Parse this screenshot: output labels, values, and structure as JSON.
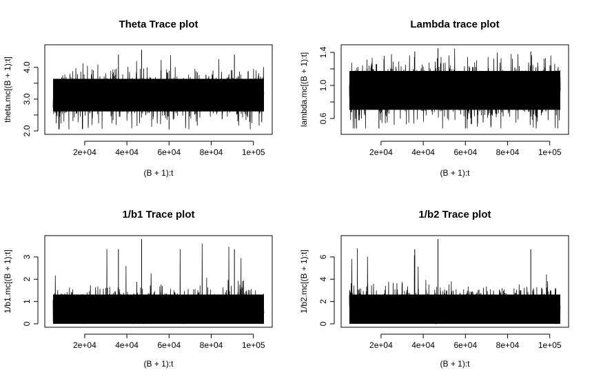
{
  "chart_data": [
    {
      "type": "line",
      "title": "Theta Trace plot",
      "xlabel": "(B + 1):t",
      "ylabel": "theta.mc[(B + 1):t]",
      "xlim": [
        5000,
        105000
      ],
      "ylim": [
        2.0,
        4.6
      ],
      "xticks": [
        20000,
        40000,
        60000,
        80000,
        100000
      ],
      "xtick_labels": [
        "2e+04",
        "4e+04",
        "6e+04",
        "8e+04",
        "1e+05"
      ],
      "yticks": [
        2.0,
        2.5,
        3.0,
        3.5,
        4.0
      ],
      "ytick_labels": [
        "2.0",
        "",
        "3.0",
        "",
        "4.0"
      ],
      "series": [
        {
          "style": "dense-trace",
          "center": 3.1,
          "band": [
            2.5,
            3.8
          ],
          "extremes": [
            2.05,
            4.55
          ]
        }
      ]
    },
    {
      "type": "line",
      "title": "Lambda trace plot",
      "xlabel": "(B + 1):t",
      "ylabel": "lambda.mc[(B + 1):t]",
      "xlim": [
        5000,
        105000
      ],
      "ylim": [
        0.45,
        1.45
      ],
      "xticks": [
        20000,
        40000,
        60000,
        80000,
        100000
      ],
      "xtick_labels": [
        "2e+04",
        "4e+04",
        "6e+04",
        "8e+04",
        "1e+05"
      ],
      "yticks": [
        0.6,
        0.8,
        1.0,
        1.2,
        1.4
      ],
      "ytick_labels": [
        "0.6",
        "",
        "1.0",
        "",
        "1.4"
      ],
      "series": [
        {
          "style": "dense-trace",
          "center": 0.93,
          "band": [
            0.65,
            1.25
          ],
          "extremes": [
            0.48,
            1.45
          ]
        }
      ]
    },
    {
      "type": "line",
      "title": "1/b1 Trace plot",
      "xlabel": "(B + 1):t",
      "ylabel": "1/b1.mc[(B + 1):t]",
      "xlim": [
        5000,
        105000
      ],
      "ylim": [
        0,
        3.8
      ],
      "xticks": [
        20000,
        40000,
        60000,
        80000,
        100000
      ],
      "xtick_labels": [
        "2e+04",
        "4e+04",
        "6e+04",
        "8e+04",
        "1e+05"
      ],
      "yticks": [
        0,
        1,
        2,
        3
      ],
      "ytick_labels": [
        "0",
        "1",
        "2",
        "3"
      ],
      "series": [
        {
          "style": "dense-trace",
          "center": 0.7,
          "band": [
            0.0,
            1.5
          ],
          "extremes": [
            0.0,
            3.8
          ]
        }
      ]
    },
    {
      "type": "line",
      "title": "1/b2 Trace plot",
      "xlabel": "(B + 1):t",
      "ylabel": "1/b2.mc[(B + 1):t]",
      "xlim": [
        5000,
        105000
      ],
      "ylim": [
        0,
        7.6
      ],
      "xticks": [
        20000,
        40000,
        60000,
        80000,
        100000
      ],
      "xtick_labels": [
        "2e+04",
        "4e+04",
        "6e+04",
        "8e+04",
        "1e+05"
      ],
      "yticks": [
        0,
        2,
        4,
        6
      ],
      "ytick_labels": [
        "0",
        "2",
        "4",
        "6"
      ],
      "series": [
        {
          "style": "dense-trace",
          "center": 1.5,
          "band": [
            0.0,
            3.0
          ],
          "extremes": [
            0.0,
            7.6
          ]
        }
      ]
    }
  ]
}
